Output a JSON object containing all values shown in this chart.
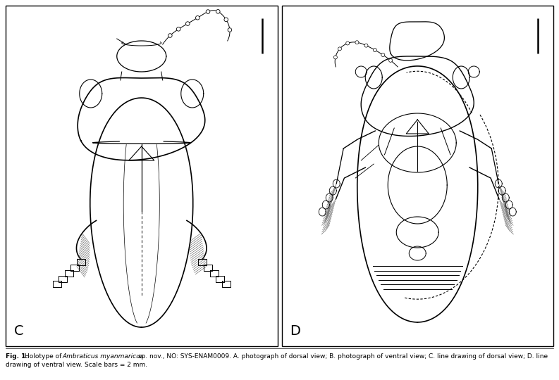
{
  "figure_width": 7.93,
  "figure_height": 5.4,
  "dpi": 100,
  "background_color": "#ffffff",
  "line_color": "#000000",
  "panel_c_label": "C",
  "panel_d_label": "D",
  "caption_fontsize": 6.5,
  "panel_label_fontsize": 14,
  "caption_line1": "Fig. 1. Holotype of ",
  "caption_italic": "Ambraticus myanmaricus",
  "caption_rest": " sp. nov., NO: SYS-ENAM0009. A. photograph of dorsal view; B. photograph of ventral view; C. line drawing of dorsal view; D. line",
  "caption_line2": "drawing of ventral view. Scale bars = 2 mm."
}
